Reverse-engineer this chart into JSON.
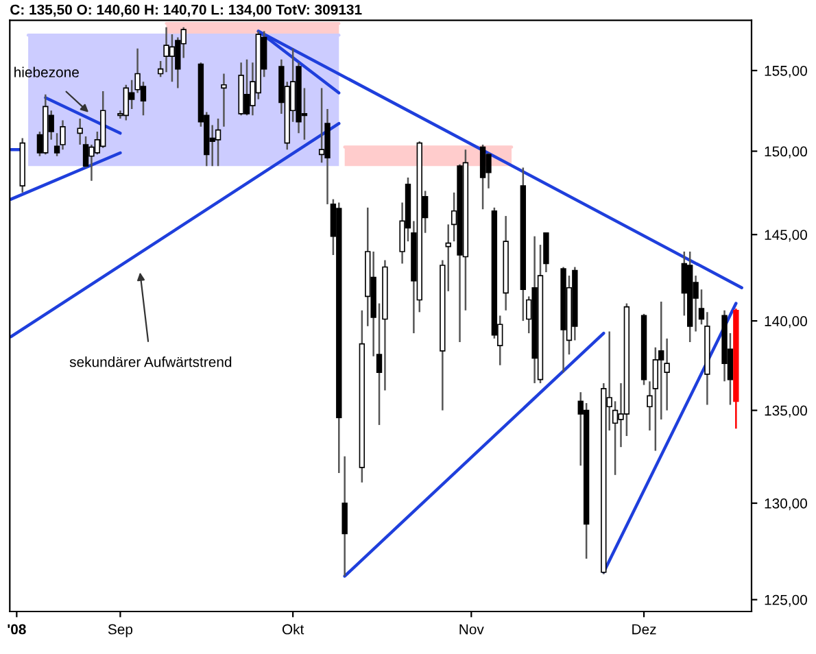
{
  "chart_data": {
    "type": "candlestick",
    "title": "C: 135,50 O: 140,60 H: 140,70 L: 134,00 TotV: 309131",
    "x": [
      "2008-08-15",
      "2008-08-18",
      "2008-08-19",
      "2008-08-20",
      "2008-08-21",
      "2008-08-22",
      "2008-08-25",
      "2008-08-26",
      "2008-08-27",
      "2008-08-28",
      "2008-08-29",
      "2008-09-01",
      "2008-09-02",
      "2008-09-03",
      "2008-09-04",
      "2008-09-05",
      "2008-09-08",
      "2008-09-09",
      "2008-09-10",
      "2008-09-11",
      "2008-09-12",
      "2008-09-15",
      "2008-09-16",
      "2008-09-17",
      "2008-09-18",
      "2008-09-19",
      "2008-09-22",
      "2008-09-23",
      "2008-09-24",
      "2008-09-25",
      "2008-09-26",
      "2008-09-29",
      "2008-09-30",
      "2008-10-01",
      "2008-10-02",
      "2008-10-03",
      "2008-10-06",
      "2008-10-07",
      "2008-10-08",
      "2008-10-09",
      "2008-10-10",
      "2008-10-13",
      "2008-10-14",
      "2008-10-15",
      "2008-10-16",
      "2008-10-17",
      "2008-10-20",
      "2008-10-21",
      "2008-10-22",
      "2008-10-23",
      "2008-10-24",
      "2008-10-27",
      "2008-10-28",
      "2008-10-29",
      "2008-10-30",
      "2008-10-31",
      "2008-11-03",
      "2008-11-04",
      "2008-11-05",
      "2008-11-06",
      "2008-11-07",
      "2008-11-10",
      "2008-11-11",
      "2008-11-12",
      "2008-11-13",
      "2008-11-14",
      "2008-11-17",
      "2008-11-18",
      "2008-11-19",
      "2008-11-20",
      "2008-11-21",
      "2008-11-24",
      "2008-11-25",
      "2008-11-26",
      "2008-11-27",
      "2008-11-28",
      "2008-12-01",
      "2008-12-02",
      "2008-12-03",
      "2008-12-04",
      "2008-12-05",
      "2008-12-08",
      "2008-12-09",
      "2008-12-10",
      "2008-12-11",
      "2008-12-12",
      "2008-12-15",
      "2008-12-16",
      "2008-12-17"
    ],
    "ohlc": [
      [
        147.9,
        150.8,
        147.5,
        150.5
      ],
      [
        151.0,
        151.2,
        149.7,
        149.9
      ],
      [
        149.9,
        153.5,
        149.8,
        152.75
      ],
      [
        152.2,
        152.5,
        150.7,
        151.2
      ],
      [
        150.3,
        151.1,
        149.7,
        149.9
      ],
      [
        150.4,
        151.9,
        150.1,
        151.5
      ],
      [
        151.1,
        152.0,
        150.4,
        151.4
      ],
      [
        150.4,
        150.9,
        149.0,
        149.1
      ],
      [
        149.7,
        150.4,
        148.2,
        150.25
      ],
      [
        149.9,
        151.2,
        149.8,
        150.7
      ],
      [
        150.3,
        153.7,
        150.2,
        152.5
      ],
      [
        152.2,
        152.5,
        152.0,
        152.3
      ],
      [
        152.2,
        154.1,
        151.9,
        153.9
      ],
      [
        153.6,
        154.4,
        152.6,
        153.2
      ],
      [
        153.8,
        156.4,
        153.6,
        154.8
      ],
      [
        154.0,
        154.3,
        152.2,
        153.1
      ],
      [
        154.8,
        155.6,
        154.6,
        155.1
      ],
      [
        155.9,
        157.75,
        154.9,
        156.6
      ],
      [
        155.9,
        157.3,
        154.3,
        156.5
      ],
      [
        156.9,
        157.1,
        153.9,
        155.1
      ],
      [
        156.7,
        157.75,
        155.8,
        157.6
      ],
      [
        155.4,
        155.5,
        151.5,
        151.8
      ],
      [
        152.2,
        152.4,
        149.1,
        149.8
      ],
      [
        150.8,
        151.6,
        149.1,
        150.6
      ],
      [
        150.7,
        152.0,
        149.1,
        151.3
      ],
      [
        153.9,
        154.8,
        151.5,
        154.1
      ],
      [
        152.3,
        155.5,
        152.2,
        154.7
      ],
      [
        153.5,
        155.7,
        152.2,
        152.3
      ],
      [
        152.8,
        155.5,
        152.2,
        154.3
      ],
      [
        153.6,
        157.5,
        153.2,
        157.3
      ],
      [
        157.1,
        157.5,
        154.6,
        155.1
      ],
      [
        155.25,
        155.7,
        152.3,
        153.0
      ],
      [
        150.5,
        154.3,
        150.1,
        154.0
      ],
      [
        152.5,
        156.4,
        151.8,
        154.3
      ],
      [
        155.25,
        155.5,
        151.1,
        151.8
      ],
      [
        152.3,
        153.9,
        150.7,
        152.2
      ],
      [
        149.8,
        153.9,
        149.3,
        150.1
      ],
      [
        151.7,
        152.6,
        146.8,
        149.6
      ],
      [
        146.8,
        147.1,
        143.8,
        144.9
      ],
      [
        146.55,
        146.9,
        131.6,
        134.6
      ],
      [
        130.0,
        132.5,
        126.2,
        128.4
      ],
      [
        131.9,
        140.6,
        131.1,
        138.7
      ],
      [
        141.4,
        146.6,
        139.7,
        144.0
      ],
      [
        142.5,
        144.0,
        138.0,
        140.2
      ],
      [
        138.1,
        141.0,
        134.2,
        137.1
      ],
      [
        140.1,
        143.5,
        136.1,
        143.1
      ],
      [
        144.0,
        146.9,
        143.3,
        145.8
      ],
      [
        148.0,
        148.4,
        144.6,
        145.4
      ],
      [
        145.1,
        145.8,
        139.3,
        142.3
      ],
      [
        141.2,
        150.6,
        140.5,
        150.5
      ],
      [
        147.25,
        147.6,
        145.1,
        146.0
      ],
      [
        138.3,
        143.5,
        135.0,
        143.2
      ],
      [
        144.3,
        145.6,
        141.7,
        144.5
      ],
      [
        145.6,
        147.5,
        144.6,
        146.4
      ],
      [
        149.1,
        149.2,
        138.8,
        143.8
      ],
      [
        143.7,
        150.1,
        140.6,
        149.3
      ],
      [
        150.25,
        150.4,
        146.5,
        148.4
      ],
      [
        149.8,
        149.9,
        147.75,
        148.7
      ],
      [
        146.4,
        146.6,
        139.0,
        139.2
      ],
      [
        138.6,
        140.3,
        137.5,
        139.8
      ],
      [
        141.6,
        146.1,
        140.6,
        144.6
      ],
      [
        147.9,
        149.0,
        140.0,
        141.8
      ],
      [
        140.1,
        141.4,
        139.3,
        141.2
      ],
      [
        141.9,
        144.9,
        136.5,
        137.9
      ],
      [
        136.7,
        144.4,
        136.5,
        142.6
      ],
      [
        145.1,
        145.1,
        142.8,
        143.3
      ],
      [
        143.0,
        143.1,
        137.1,
        139.5
      ],
      [
        138.9,
        142.6,
        138.1,
        141.9
      ],
      [
        142.9,
        143.1,
        138.9,
        139.7
      ],
      [
        135.5,
        136.0,
        132.0,
        134.8
      ],
      [
        135.0,
        135.4,
        127.1,
        128.9
      ],
      [
        126.4,
        136.5,
        126.3,
        136.2
      ],
      [
        135.2,
        139.4,
        133.9,
        135.7
      ],
      [
        134.3,
        135.5,
        131.5,
        135.0
      ],
      [
        134.5,
        136.5,
        133.0,
        134.8
      ],
      [
        134.8,
        141.0,
        133.6,
        140.8
      ],
      [
        140.3,
        140.4,
        136.4,
        136.7
      ],
      [
        135.2,
        136.6,
        133.9,
        135.8
      ],
      [
        136.2,
        138.5,
        132.8,
        137.8
      ],
      [
        138.3,
        141.1,
        134.5,
        137.8
      ],
      [
        137.1,
        139.0,
        135.0,
        137.6
      ],
      [
        143.3,
        144.0,
        140.3,
        141.6
      ],
      [
        143.2,
        144.0,
        138.8,
        139.7
      ],
      [
        142.2,
        142.6,
        139.4,
        141.3
      ],
      [
        140.7,
        141.8,
        139.8,
        140.1
      ],
      [
        137.0,
        140.5,
        135.3,
        139.7
      ],
      [
        140.3,
        140.6,
        136.6,
        137.6
      ],
      [
        138.4,
        139.3,
        135.3,
        136.7
      ],
      [
        140.6,
        140.7,
        134.0,
        135.5
      ]
    ],
    "colors": [
      "#000000",
      "#000000",
      "#000000",
      "#000000",
      "#000000",
      "#000000",
      "#000000",
      "#000000",
      "#000000",
      "#000000",
      "#000000",
      "#000000",
      "#000000",
      "#000000",
      "#000000",
      "#000000",
      "#000000",
      "#000000",
      "#000000",
      "#000000",
      "#000000",
      "#000000",
      "#000000",
      "#000000",
      "#000000",
      "#000000",
      "#000000",
      "#000000",
      "#000000",
      "#000000",
      "#000000",
      "#000000",
      "#000000",
      "#000000",
      "#000000",
      "#000000",
      "#000000",
      "#000000",
      "#000000",
      "#000000",
      "#000000",
      "#000000",
      "#000000",
      "#000000",
      "#000000",
      "#000000",
      "#000000",
      "#000000",
      "#000000",
      "#000000",
      "#000000",
      "#000000",
      "#000000",
      "#000000",
      "#000000",
      "#000000",
      "#000000",
      "#000000",
      "#000000",
      "#000000",
      "#000000",
      "#000000",
      "#000000",
      "#000000",
      "#000000",
      "#000000",
      "#000000",
      "#000000",
      "#000000",
      "#000000",
      "#000000",
      "#000000",
      "#000000",
      "#000000",
      "#000000",
      "#000000",
      "#000000",
      "#000000",
      "#000000",
      "#000000",
      "#000000",
      "#000000",
      "#000000",
      "#000000",
      "#000000",
      "#000000",
      "#000000",
      "#000000",
      "#ff0000"
    ],
    "series": [
      {
        "type": "line",
        "color": "#ccccff",
        "x": [
          "2008-08-16",
          "2008-10-09"
        ],
        "values": [
          157.25,
          157.25
        ],
        "lower": [
          149.1,
          149.1
        ],
        "upper": [
          157.25,
          157.25
        ]
      },
      {
        "type": "line",
        "color": "#ffcccc",
        "x": [
          "2008-09-09",
          "2008-10-09"
        ],
        "values": [
          158.0,
          158.0
        ],
        "lower": [
          157.25,
          157.25
        ],
        "upper": [
          158.0,
          158.0
        ]
      },
      {
        "type": "line",
        "color": "#ffcccc",
        "x": [
          "2008-10-10",
          "2008-11-08"
        ],
        "values": [
          150.25,
          150.25
        ],
        "lower": [
          149.1,
          149.1
        ],
        "upper": [
          150.25,
          150.25
        ]
      },
      {
        "type": "line",
        "color": "#1f3fdc",
        "x": [
          "2008-08-13",
          "2008-10-09"
        ],
        "values": [
          139.1,
          151.7
        ]
      },
      {
        "type": "line",
        "color": "#1f3fdc",
        "x": [
          "2008-08-13",
          "2008-09-01"
        ],
        "values": [
          147.1,
          149.9
        ]
      },
      {
        "type": "line",
        "color": "#1f3fdc",
        "x": [
          "2008-08-19",
          "2008-09-01"
        ],
        "values": [
          153.3,
          151.1
        ]
      },
      {
        "type": "line",
        "color": "#1f3fdc",
        "x": [
          "2008-08-13",
          "2008-08-15"
        ],
        "values": [
          150.1,
          150.1
        ]
      },
      {
        "type": "line",
        "color": "#1f3fdc",
        "x": [
          "2008-09-25",
          "2008-12-18"
        ],
        "values": [
          157.5,
          141.9
        ]
      },
      {
        "type": "line",
        "color": "#1f3fdc",
        "x": [
          "2008-09-25",
          "2008-10-09"
        ],
        "values": [
          157.5,
          153.6
        ]
      },
      {
        "type": "line",
        "color": "#1f3fdc",
        "x": [
          "2008-10-10",
          "2008-11-24"
        ],
        "values": [
          126.2,
          139.3
        ]
      },
      {
        "type": "line",
        "color": "#1f3fdc",
        "x": [
          "2008-11-24",
          "2008-12-17"
        ],
        "values": [
          126.4,
          141.0
        ]
      }
    ],
    "annotations": [
      "hiebezone",
      "sekundärer Aufwärtstrend"
    ],
    "log": true,
    "xlim": [
      "2008-08-12T19:12",
      "2008-12-19T16:48"
    ],
    "xticks": [
      {
        "value": "2008-08-14",
        "label": "'08"
      },
      {
        "value": "2008-09",
        "label": "Sep"
      },
      {
        "value": "2008-10",
        "label": "Okt"
      },
      {
        "value": "2008-11",
        "label": "Nov"
      },
      {
        "value": "2008-12",
        "label": "Dez"
      }
    ],
    "ylim": [
      124.4,
      158.2
    ],
    "yticks": [
      {
        "value": 125,
        "label": "125,00"
      },
      {
        "value": 130,
        "label": "130,00"
      },
      {
        "value": 135,
        "label": "135,00"
      },
      {
        "value": 140,
        "label": "140,00"
      },
      {
        "value": 145,
        "label": "145,00"
      },
      {
        "value": 150,
        "label": "150,00"
      },
      {
        "value": 155,
        "label": "155,00"
      }
    ]
  }
}
